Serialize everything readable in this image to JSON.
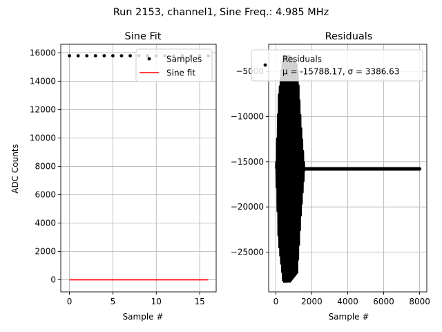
{
  "figure": {
    "suptitle": "Run 2153, channel1, Sine Freq.: 4.985 MHz"
  },
  "colors": {
    "samples": "#000000",
    "fit": "#ff0000",
    "grid": "#b0b0b0",
    "axes": "#000000",
    "legend_edge": "#cccccc"
  },
  "chart_data": [
    {
      "type": "scatter",
      "title": "Sine Fit",
      "xlabel": "Sample #",
      "ylabel": "ADC Counts",
      "xlim": [
        -1.0,
        16.9
      ],
      "ylim": [
        -850,
        16600
      ],
      "xticks": [
        0,
        5,
        10,
        15
      ],
      "yticks": [
        0,
        2000,
        4000,
        6000,
        8000,
        10000,
        12000,
        14000,
        16000
      ],
      "grid": true,
      "legend": {
        "placement": "top-right",
        "entries": [
          {
            "label": "Samples",
            "kind": "marker",
            "color": "#000000"
          },
          {
            "label": "Sine fit",
            "kind": "line",
            "color": "#ff0000"
          }
        ]
      },
      "series": [
        {
          "name": "Samples",
          "kind": "points",
          "color": "#000000",
          "x": [
            0,
            1,
            2,
            3,
            4,
            5,
            6,
            7,
            8,
            9,
            10,
            11,
            12,
            13,
            14,
            15,
            16
          ],
          "y": [
            15788,
            15788,
            15788,
            15788,
            15788,
            15788,
            15788,
            15788,
            15788,
            15788,
            15788,
            15788,
            15788,
            15788,
            15788,
            15788,
            15788
          ]
        },
        {
          "name": "Sine fit",
          "kind": "line",
          "color": "#ff0000",
          "x": [
            0,
            16
          ],
          "y": [
            0,
            0
          ]
        }
      ]
    },
    {
      "type": "scatter",
      "title": "Residuals",
      "xlabel": "Sample #",
      "ylabel": "",
      "xlim": [
        -400,
        8400
      ],
      "ylim": [
        -29400,
        -2000
      ],
      "xticks": [
        0,
        2000,
        4000,
        6000,
        8000
      ],
      "yticks": [
        -5000,
        -10000,
        -15000,
        -20000,
        -25000
      ],
      "grid": true,
      "legend": {
        "placement": "top-right",
        "entries": [
          {
            "label": "Residuals",
            "kind": "marker",
            "color": "#000000"
          },
          {
            "label": "μ = -15788.17, σ = 3386.63",
            "kind": "none",
            "color": ""
          }
        ]
      },
      "series": [
        {
          "name": "Residuals",
          "kind": "dense-points",
          "color": "#000000",
          "mean": -15788.17,
          "std": 3386.63,
          "burst_end": 1600,
          "x_max": 8000,
          "envelope": [
            {
              "x": 0,
              "amp": 0
            },
            {
              "x": 150,
              "amp": 8000
            },
            {
              "x": 400,
              "amp": 12500
            },
            {
              "x": 800,
              "amp": 12500
            },
            {
              "x": 1200,
              "amp": 11500
            },
            {
              "x": 1400,
              "amp": 5000
            },
            {
              "x": 1600,
              "amp": 0
            }
          ]
        }
      ]
    }
  ]
}
